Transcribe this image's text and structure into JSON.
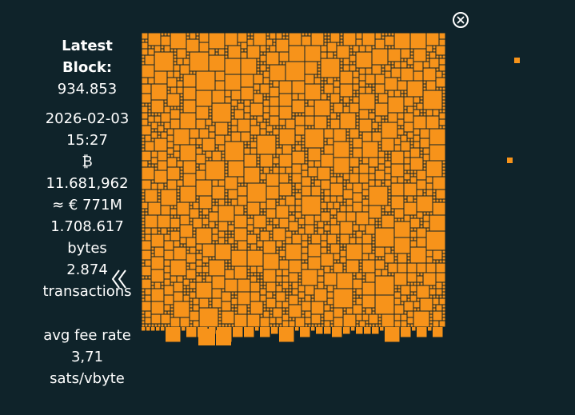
{
  "latest_block": {
    "title": "Latest Block:",
    "height": "934.853",
    "date": "2026-02-03",
    "time": "15:27",
    "btc_symbol": "₿",
    "btc_amount": "11.681,962",
    "eur_value": "≈ € 771M",
    "size_value": "1.708.617",
    "size_unit": "bytes",
    "tx_count": "2.874",
    "tx_unit": "transactions",
    "fee_label": "avg fee rate",
    "fee_value": "3,71",
    "fee_unit": "sats/vbyte"
  },
  "icons": {
    "close": "close-circle-icon",
    "previous": "double-chevron-left-icon"
  },
  "colors": {
    "background": "#0f232a",
    "transaction": "#f7931a",
    "text": "#ffffff"
  }
}
